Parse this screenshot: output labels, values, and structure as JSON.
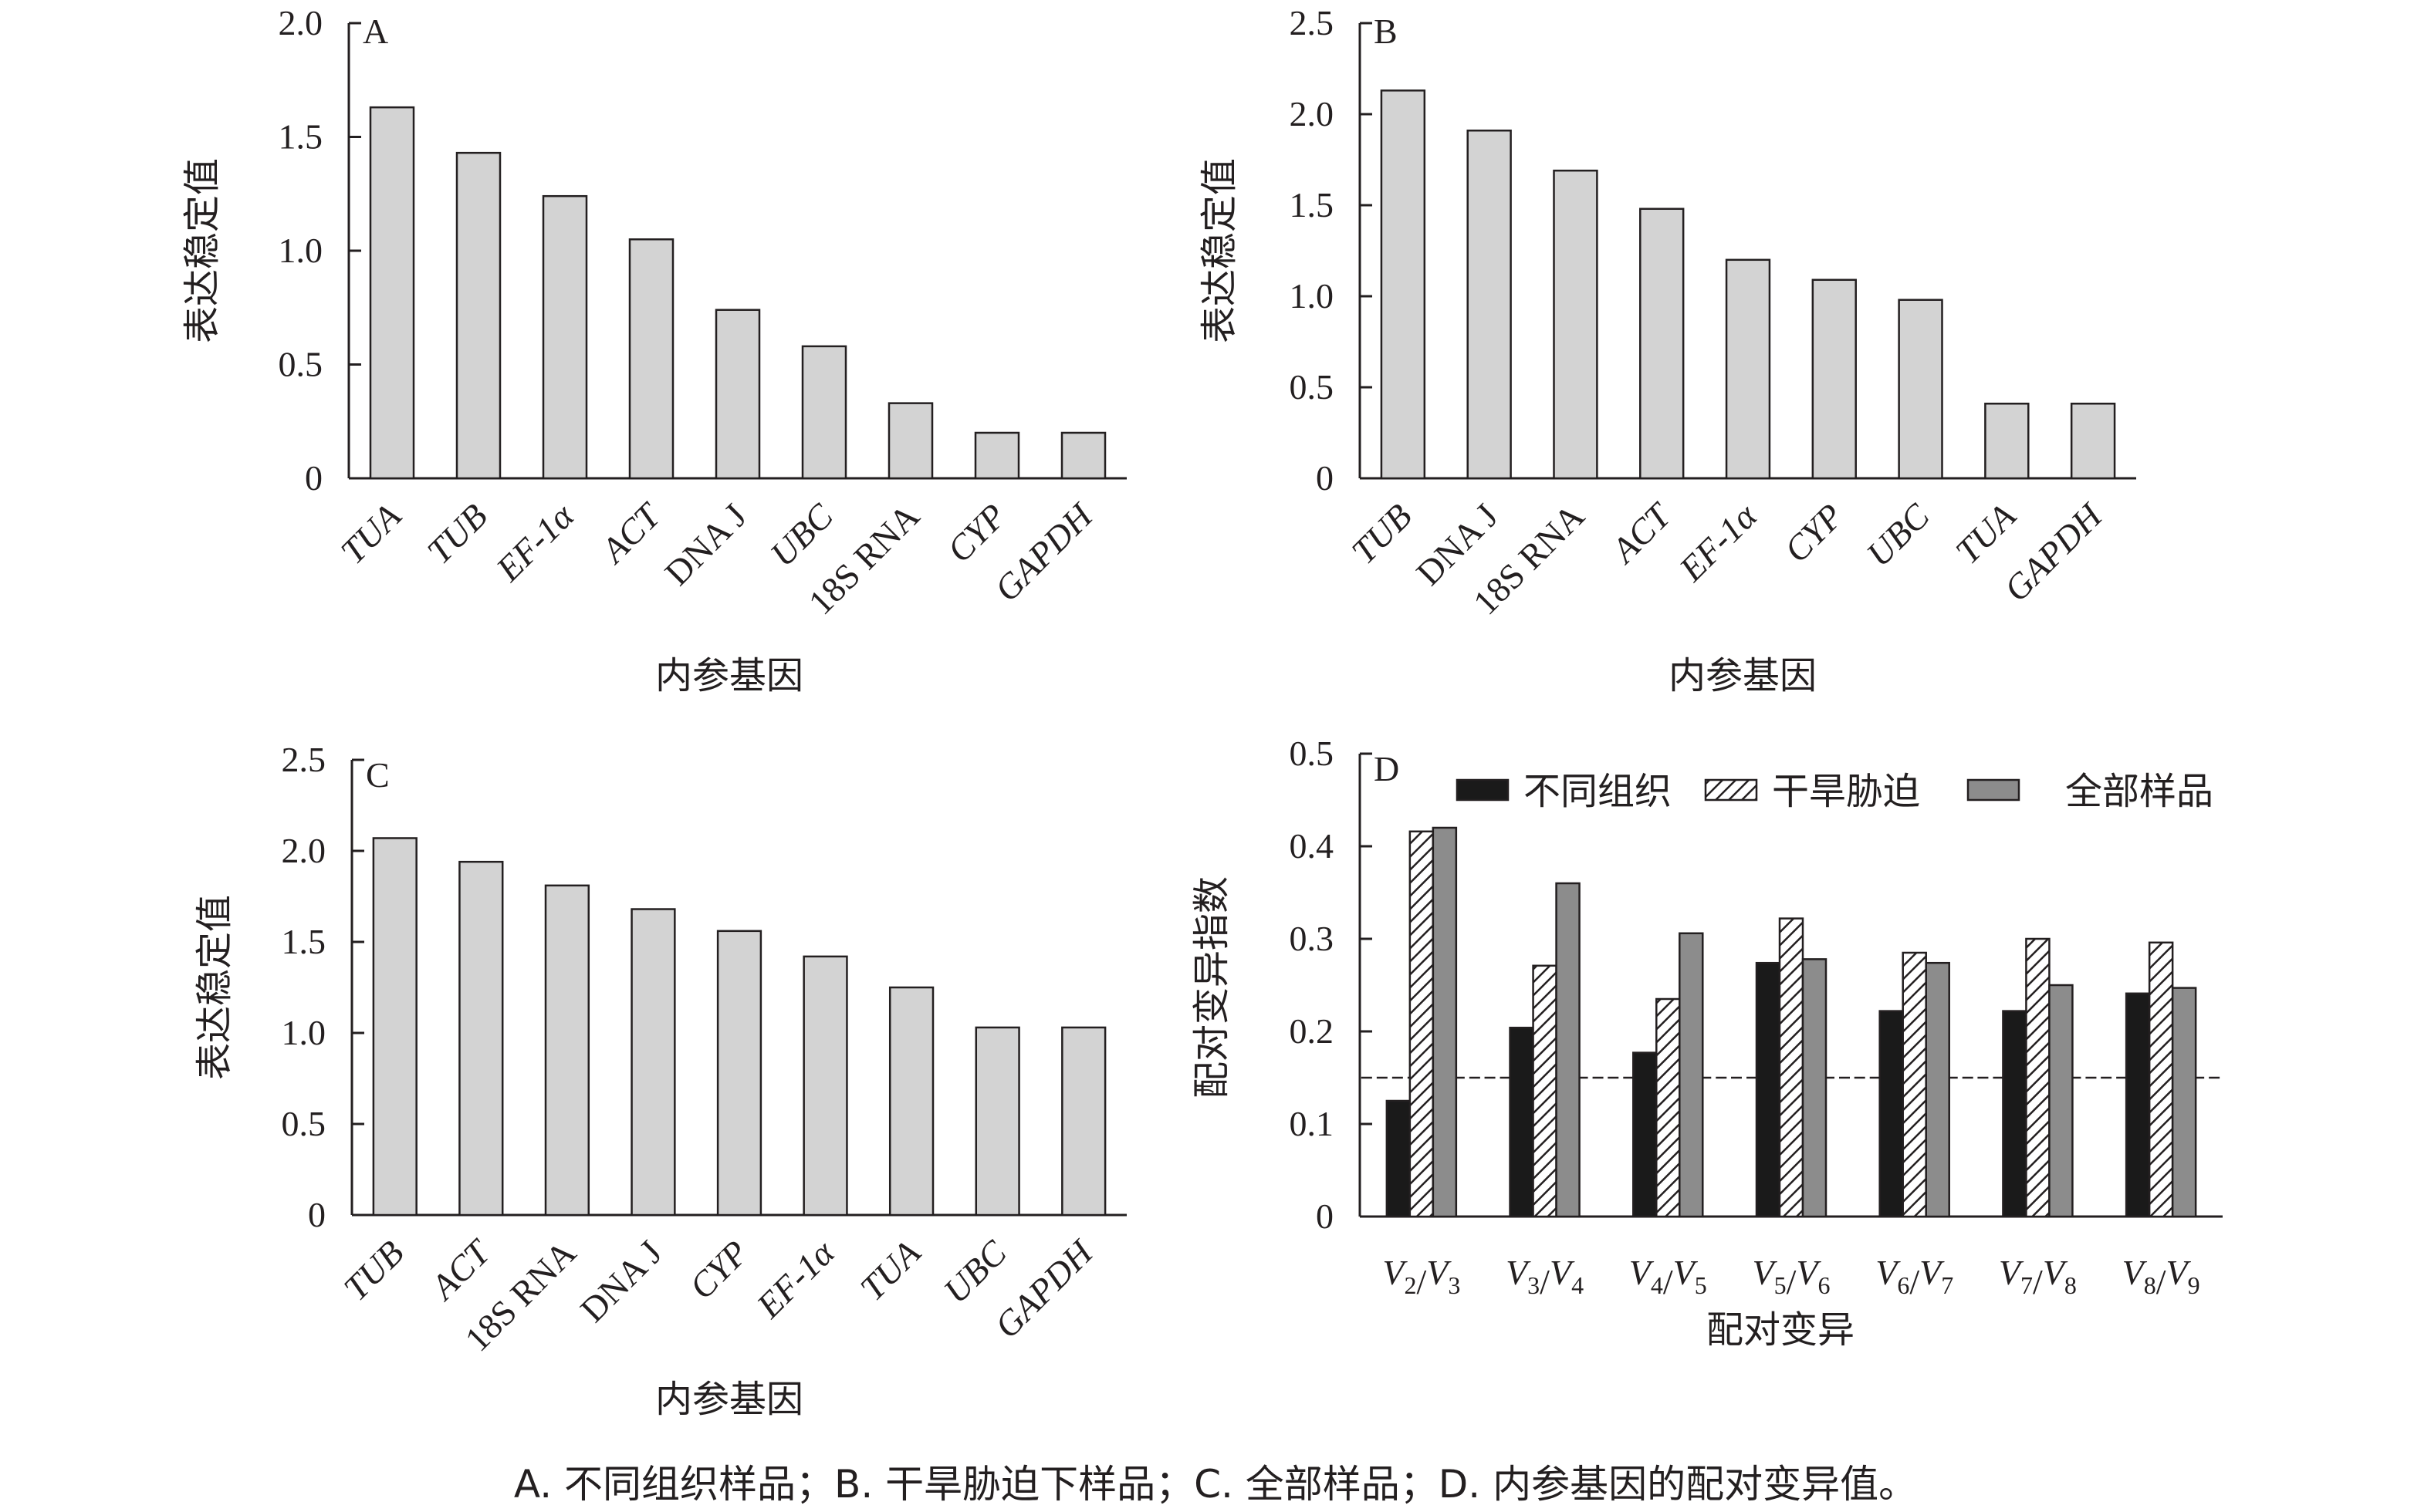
{
  "caption": "A. 不同组织样品；B. 干旱胁迫下样品；C. 全部样品；D. 内参基因的配对变异值。",
  "chart_data": [
    {
      "panel": "A",
      "type": "bar",
      "ylabel": "表达稳定值",
      "xlabel": "内参基因",
      "ylim": [
        0,
        2.0
      ],
      "yticks": [
        0,
        0.5,
        1.0,
        1.5,
        2.0
      ],
      "ytick_labels": [
        "0",
        "0.5",
        "1.0",
        "1.5",
        "2.0"
      ],
      "categories": [
        "TUA",
        "TUB",
        "EF-1α",
        "ACT",
        "DNA J",
        "UBC",
        "18S RNA",
        "CYP",
        "GAPDH"
      ],
      "italic": [
        true,
        true,
        true,
        true,
        false,
        true,
        false,
        true,
        true
      ],
      "values": [
        1.63,
        1.43,
        1.24,
        1.05,
        0.74,
        0.58,
        0.33,
        0.2,
        0.2
      ],
      "bar_color": "#d3d3d3"
    },
    {
      "panel": "B",
      "type": "bar",
      "ylabel": "表达稳定值",
      "xlabel": "内参基因",
      "ylim": [
        0,
        2.5
      ],
      "yticks": [
        0,
        0.5,
        1.0,
        1.5,
        2.0,
        2.5
      ],
      "ytick_labels": [
        "0",
        "0.5",
        "1.0",
        "1.5",
        "2.0",
        "2.5"
      ],
      "categories": [
        "TUB",
        "DNA J",
        "18S RNA",
        "ACT",
        "EF-1α",
        "CYP",
        "UBC",
        "TUA",
        "GAPDH"
      ],
      "italic": [
        true,
        false,
        false,
        true,
        true,
        true,
        true,
        true,
        true
      ],
      "values": [
        2.13,
        1.91,
        1.69,
        1.48,
        1.2,
        1.09,
        0.98,
        0.41,
        0.41
      ],
      "bar_color": "#d3d3d3"
    },
    {
      "panel": "C",
      "type": "bar",
      "ylabel": "表达稳定值",
      "xlabel": "内参基因",
      "ylim": [
        0,
        2.5
      ],
      "yticks": [
        0,
        0.5,
        1.0,
        1.5,
        2.0,
        2.5
      ],
      "ytick_labels": [
        "0",
        "0.5",
        "1.0",
        "1.5",
        "2.0",
        "2.5"
      ],
      "categories": [
        "TUB",
        "ACT",
        "18S RNA",
        "DNA J",
        "CYP",
        "EF-1α",
        "TUA",
        "UBC",
        "GAPDH"
      ],
      "italic": [
        true,
        true,
        false,
        false,
        true,
        true,
        true,
        true,
        true
      ],
      "values": [
        2.07,
        1.94,
        1.81,
        1.68,
        1.56,
        1.42,
        1.25,
        1.03,
        1.03
      ],
      "bar_color": "#d3d3d3"
    },
    {
      "panel": "D",
      "type": "bar",
      "ylabel": "配对变异指数",
      "xlabel": "配对变异",
      "ylim": [
        0,
        0.5
      ],
      "yticks": [
        0,
        0.1,
        0.2,
        0.3,
        0.4,
        0.5
      ],
      "ytick_labels": [
        "0",
        "0.1",
        "0.2",
        "0.3",
        "0.4",
        "0.5"
      ],
      "categories": [
        {
          "a": "V",
          "as": "2",
          "b": "V",
          "bs": "3"
        },
        {
          "a": "V",
          "as": "3",
          "b": "V",
          "bs": "4"
        },
        {
          "a": "V",
          "as": "4",
          "b": "V",
          "bs": "5"
        },
        {
          "a": "V",
          "as": "5",
          "b": "V",
          "bs": "6"
        },
        {
          "a": "V",
          "as": "6",
          "b": "V",
          "bs": "7"
        },
        {
          "a": "V",
          "as": "7",
          "b": "V",
          "bs": "8"
        },
        {
          "a": "V",
          "as": "8",
          "b": "V",
          "bs": "9"
        }
      ],
      "series": [
        {
          "name": "不同组织",
          "values": [
            0.125,
            0.204,
            0.177,
            0.274,
            0.222,
            0.222,
            0.241
          ],
          "fill": "#1a1a1a"
        },
        {
          "name": "干旱胁迫",
          "values": [
            0.416,
            0.271,
            0.235,
            0.322,
            0.285,
            0.3,
            0.296
          ],
          "fill": "hatch"
        },
        {
          "name": "全部样品",
          "values": [
            0.42,
            0.36,
            0.306,
            0.278,
            0.274,
            0.25,
            0.247
          ],
          "fill": "#8c8c8c"
        }
      ],
      "threshold": 0.15,
      "legend_position": "top-right"
    }
  ]
}
